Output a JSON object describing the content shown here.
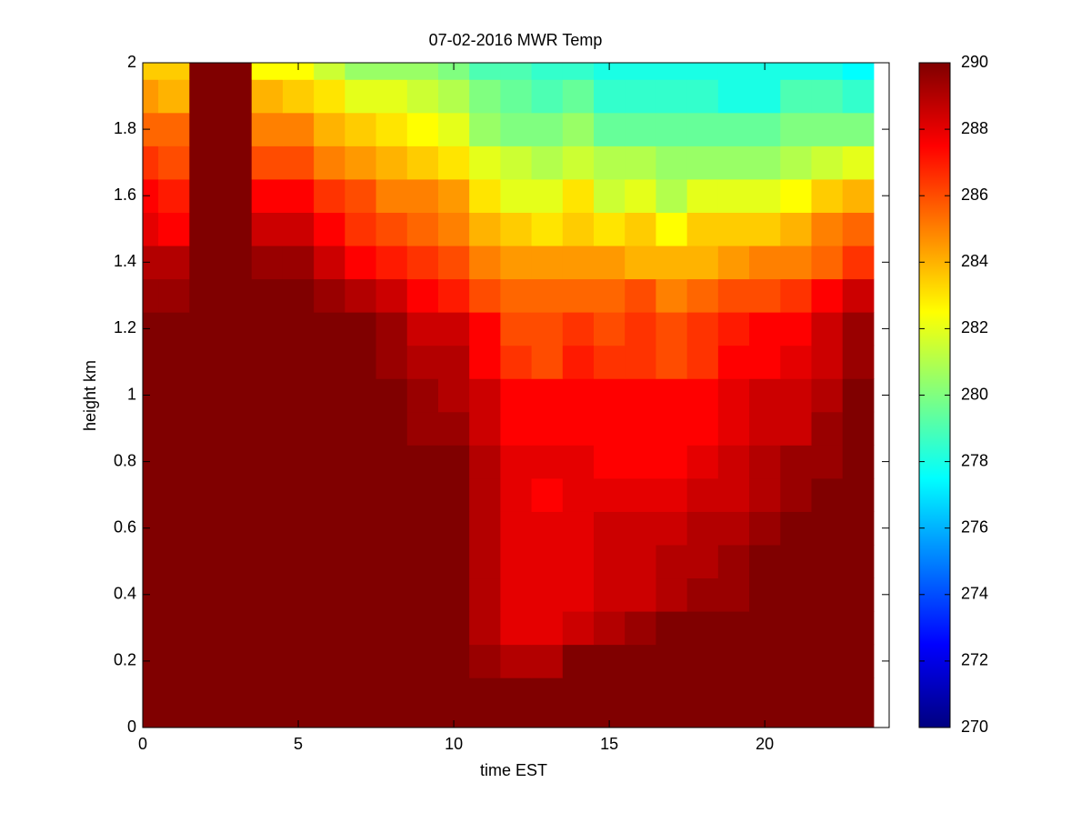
{
  "chart_data": {
    "type": "heatmap",
    "title": "07-02-2016 MWR Temp",
    "x_label": "time EST",
    "y_label": "height km",
    "colormap": "jet",
    "x": [
      0,
      1,
      2,
      3,
      4,
      5,
      6,
      7,
      8,
      9,
      10,
      11,
      12,
      13,
      14,
      15,
      16,
      17,
      18,
      19,
      20,
      21,
      22,
      23
    ],
    "y": [
      0,
      0.1,
      0.2,
      0.3,
      0.4,
      0.5,
      0.6,
      0.7,
      0.8,
      0.9,
      1,
      1.1,
      1.2,
      1.3,
      1.4,
      1.5,
      1.6,
      1.7,
      1.8,
      1.9,
      2
    ],
    "z": [
      [
        290,
        290,
        290,
        290,
        290,
        290,
        290,
        290,
        290,
        290,
        290,
        290,
        290,
        290,
        290,
        290,
        290,
        290,
        290,
        290,
        290,
        290,
        290,
        290
      ],
      [
        290,
        290,
        290,
        290,
        290,
        290,
        290,
        290,
        290,
        290,
        290,
        290,
        290,
        290,
        290,
        290,
        290,
        290,
        290,
        290,
        290,
        290,
        290,
        290
      ],
      [
        290,
        290,
        290,
        290,
        290,
        290,
        290,
        290,
        290,
        290,
        290,
        289.5,
        289,
        289,
        290,
        290,
        290,
        290,
        290,
        290,
        290,
        290,
        290,
        290
      ],
      [
        290,
        290,
        290,
        290,
        290,
        290,
        290,
        290,
        290,
        290,
        290,
        289,
        288,
        288,
        288.5,
        289,
        289.5,
        290,
        290,
        290,
        290,
        290,
        290,
        290
      ],
      [
        290,
        290,
        290,
        290,
        290,
        290,
        290,
        290,
        290,
        290,
        290,
        289,
        288,
        288,
        288,
        288.5,
        288.5,
        289,
        289.5,
        289.5,
        290,
        290,
        290,
        290
      ],
      [
        290,
        290,
        290,
        290,
        290,
        290,
        290,
        290,
        290,
        290,
        290,
        289,
        288,
        288,
        288,
        288.5,
        288.5,
        289,
        289,
        289.5,
        290,
        290,
        290,
        290
      ],
      [
        290,
        290,
        290,
        290,
        290,
        290,
        290,
        290,
        290,
        290,
        290,
        289,
        288,
        288,
        288,
        288.5,
        288.5,
        288.5,
        289,
        289,
        289.5,
        290,
        290,
        290
      ],
      [
        290,
        290,
        290,
        290,
        290,
        290,
        290,
        290,
        290,
        290,
        290,
        289,
        288,
        287.5,
        288,
        288,
        288,
        288,
        288.5,
        288.5,
        289,
        289.5,
        290,
        290
      ],
      [
        290,
        290,
        290,
        290,
        290,
        290,
        290,
        290,
        290,
        290,
        290,
        289,
        288,
        288,
        288,
        287.5,
        287.5,
        287.5,
        288,
        288.5,
        289,
        289.5,
        289.5,
        290
      ],
      [
        290,
        290,
        290,
        290,
        290,
        290,
        290,
        290,
        290,
        289.5,
        289.5,
        288.5,
        287.5,
        287.5,
        287.5,
        287.5,
        287.5,
        287.5,
        287.5,
        288,
        288.5,
        288.5,
        289.5,
        290
      ],
      [
        290,
        290,
        290,
        290,
        290,
        290,
        290,
        290,
        290,
        289.5,
        289,
        288.5,
        287.5,
        287.5,
        287.5,
        287.5,
        287.5,
        287.5,
        287.5,
        288,
        288.5,
        288.5,
        289,
        290
      ],
      [
        290,
        290,
        290,
        290,
        290,
        290,
        290,
        290,
        289.5,
        289,
        289,
        287.5,
        286.5,
        286,
        287,
        286.5,
        286.5,
        286,
        286.5,
        287.5,
        287.5,
        288,
        288.5,
        289.5
      ],
      [
        290,
        290,
        290,
        290,
        290,
        290,
        290,
        290,
        289.5,
        288.5,
        288.5,
        287.5,
        286,
        286,
        286.5,
        286,
        286.5,
        286,
        286.5,
        287,
        287.5,
        287.5,
        288.5,
        289.5
      ],
      [
        289.5,
        289.5,
        290,
        290,
        290,
        290,
        289.5,
        289,
        288.5,
        287.5,
        287,
        286,
        285.5,
        285.5,
        285.5,
        285.5,
        286,
        285,
        285.5,
        286,
        286,
        286.5,
        287.5,
        288.5
      ],
      [
        289,
        289,
        290,
        290,
        289.5,
        289.5,
        288.5,
        287.5,
        287,
        286.5,
        286,
        285,
        284.5,
        284.5,
        284.5,
        284.5,
        284,
        284,
        284,
        284.5,
        285,
        285,
        285.5,
        286.5
      ],
      [
        288,
        287.5,
        290,
        290,
        288.5,
        288.5,
        287.5,
        286.5,
        286,
        285.5,
        285,
        284,
        283.5,
        283,
        283.5,
        283,
        283.5,
        282.5,
        283.5,
        283.5,
        283.5,
        284,
        285,
        285.5
      ],
      [
        287.5,
        287,
        290,
        290,
        287.5,
        287.5,
        286.5,
        286,
        285,
        285,
        284.5,
        283,
        282,
        282,
        283,
        281.5,
        282,
        281,
        282,
        282,
        282,
        282.5,
        283.5,
        284
      ],
      [
        286.5,
        286,
        290,
        290,
        286,
        286,
        285,
        284.5,
        284,
        283.5,
        283,
        282,
        281.5,
        281,
        281.5,
        281,
        281,
        280.5,
        280.5,
        280.5,
        280.5,
        281,
        281.5,
        282
      ],
      [
        285.5,
        285.5,
        290,
        290,
        285,
        285,
        284,
        283.5,
        283,
        282.5,
        282,
        280.5,
        280,
        280,
        280.5,
        279.5,
        279.5,
        279.5,
        279.5,
        279.5,
        279.5,
        280,
        280,
        280
      ],
      [
        284.5,
        284,
        290,
        290,
        284,
        283.5,
        283,
        282,
        282,
        281.5,
        281,
        280,
        279.5,
        279,
        279.5,
        278.5,
        278.5,
        278.5,
        278.5,
        278,
        278,
        279,
        279,
        278.5
      ],
      [
        283.5,
        283.5,
        290,
        290,
        282.5,
        282.5,
        281.5,
        280.5,
        280.5,
        280.5,
        280,
        279,
        279,
        278.5,
        278.5,
        278,
        278,
        278,
        278,
        278,
        278,
        278,
        278,
        277.5
      ]
    ],
    "xlim": [
      0,
      24
    ],
    "xticks": [
      0,
      5,
      10,
      15,
      20
    ],
    "ylim": [
      0,
      2
    ],
    "yticks": [
      0,
      0.2,
      0.4,
      0.6,
      0.8,
      1,
      1.2,
      1.4,
      1.6,
      1.8,
      2
    ],
    "clim": [
      270,
      290
    ],
    "cticks": [
      270,
      272,
      274,
      276,
      278,
      280,
      282,
      284,
      286,
      288,
      290
    ]
  }
}
